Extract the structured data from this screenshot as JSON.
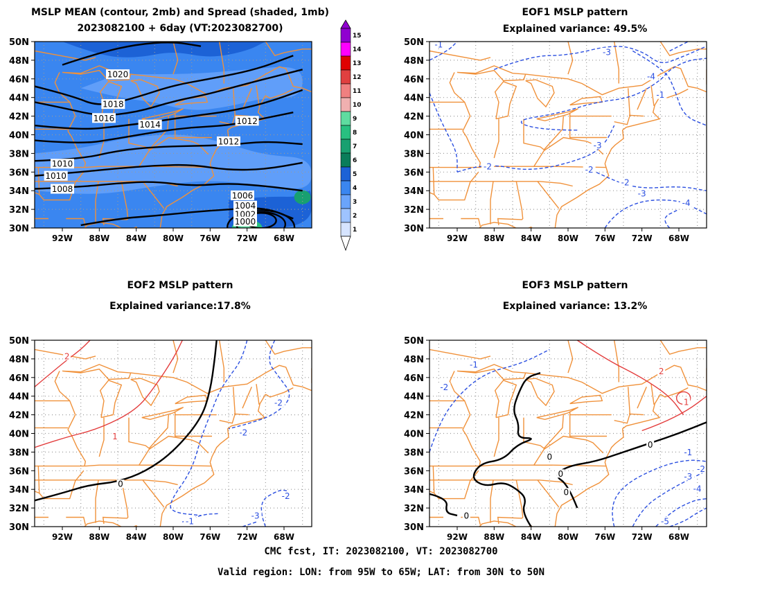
{
  "footer": {
    "line1": "CMC fcst, IT: 2023082100, VT: 2023082700",
    "line2": "Valid region: LON: from 95W to 65W; LAT: from 30N to 50N"
  },
  "colors": {
    "state_lines": "#f0913a",
    "negative_contour": "#2b4fe0",
    "positive_contour": "#e33c3c",
    "zero_contour": "#000000",
    "mean_contour": "#000000"
  },
  "lat_ticks": [
    "50N",
    "48N",
    "46N",
    "44N",
    "42N",
    "40N",
    "38N",
    "36N",
    "34N",
    "32N",
    "30N"
  ],
  "lon_ticks": [
    "92W",
    "88W",
    "84W",
    "80W",
    "76W",
    "72W",
    "68W"
  ],
  "colorbar": {
    "labels": [
      "1",
      "2",
      "3",
      "4",
      "5",
      "6",
      "7",
      "8",
      "9",
      "10",
      "11",
      "12",
      "13",
      "14",
      "15"
    ],
    "colors": [
      "#d6e4ff",
      "#9ec3ff",
      "#6aa4fb",
      "#3a86f0",
      "#1c62d6",
      "#0a7d5a",
      "#18a070",
      "#28c080",
      "#5fdca0",
      "#f0b0b0",
      "#f08080",
      "#e04040",
      "#e00000",
      "#ff00ff",
      "#9000d0"
    ]
  },
  "panels": {
    "mean": {
      "title1": "MSLP MEAN (contour, 2mb) and Spread (shaded, 1mb)",
      "title2": "2023082100 + 6day (VT:2023082700)",
      "contour_labels": [
        "1020",
        "1018",
        "1016",
        "1014",
        "1012",
        "1012",
        "1010",
        "1010",
        "1008",
        "1006",
        "1004",
        "1002",
        "1000"
      ]
    },
    "eof1": {
      "title1": "EOF1 MSLP pattern",
      "title2": "Explained variance: 49.5%",
      "contour_labels": [
        "-3",
        "-1",
        "-4",
        "-3",
        "-2",
        "-2",
        "-3",
        "-4",
        "-2",
        "-1"
      ]
    },
    "eof2": {
      "title1": "EOF2 MSLP pattern",
      "title2": "Explained variance:17.8%",
      "contour_labels": [
        "2",
        "1",
        "0",
        "-2",
        "-2",
        "-2",
        "-3",
        "-1"
      ]
    },
    "eof3": {
      "title1": "EOF3 MSLP pattern",
      "title2": "Explained variance: 13.2%",
      "contour_labels": [
        "-1",
        "-2",
        "2",
        "1",
        "0",
        "0",
        "0",
        "0",
        "0",
        "-1",
        "-2",
        "-3",
        "-4",
        "-5"
      ]
    }
  }
}
